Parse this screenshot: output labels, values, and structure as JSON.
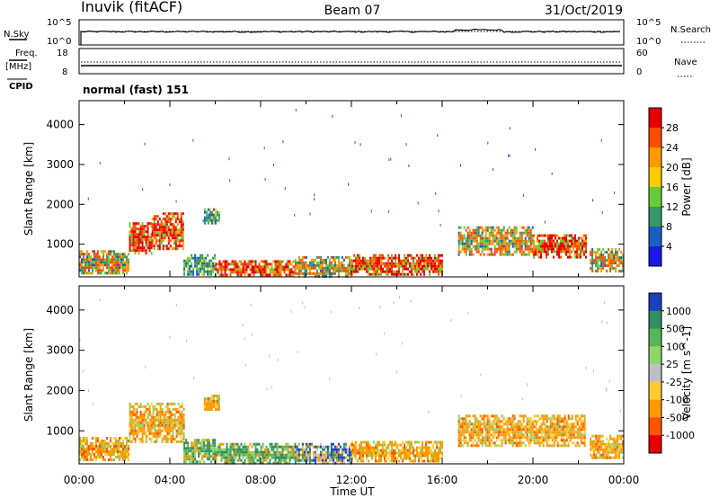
{
  "header": {
    "station": "Inuvik (fitACF)",
    "beam": "Beam 07",
    "date": "31/Oct/2019"
  },
  "meta_panel": {
    "nsky_label": "N.Sky",
    "nsearch_label": "N.Search",
    "freq_label": "Freq.",
    "freq_unit": "[MHz]",
    "nave_label": "Nave",
    "cpid_label": "CPID",
    "cpid_value": "normal (fast) 151",
    "noise_ticks_left": [
      "10^5",
      "10^0"
    ],
    "noise_ticks_right": [
      "10^5",
      "10^0"
    ],
    "freq_ticks": [
      "18",
      "8"
    ],
    "nave_ticks": [
      "60",
      "0"
    ]
  },
  "chart_data": [
    {
      "type": "heatmap",
      "title": "Power",
      "ylabel": "Slant Range [km]",
      "xlabel": "",
      "colorbar_label": "Power [dB]",
      "colorbar_ticks": [
        "28",
        "24",
        "20",
        "16",
        "12",
        "8",
        "4"
      ],
      "colorbar_colors": [
        "#e60000",
        "#ff4d00",
        "#ff9900",
        "#ffcc00",
        "#66cc33",
        "#339966",
        "#1a5fbf",
        "#1a1ae6"
      ],
      "ylim": [
        180,
        4600
      ],
      "yticks": [
        "1000",
        "2000",
        "3000",
        "4000"
      ],
      "xticks": [
        "00:00",
        "04:00",
        "08:00",
        "12:00",
        "16:00",
        "20:00",
        "00:00"
      ],
      "echo_regions": [
        {
          "t0": 0.0,
          "t1": 2.2,
          "r0": 250,
          "r1": 850,
          "level": "medium"
        },
        {
          "t0": 2.2,
          "t1": 3.2,
          "r0": 750,
          "r1": 1550,
          "level": "high"
        },
        {
          "t0": 3.2,
          "t1": 4.6,
          "r0": 900,
          "r1": 1800,
          "level": "high"
        },
        {
          "t0": 4.6,
          "t1": 6.0,
          "r0": 250,
          "r1": 750,
          "level": "low"
        },
        {
          "t0": 5.5,
          "t1": 6.2,
          "r0": 1500,
          "r1": 1900,
          "level": "low"
        },
        {
          "t0": 6.0,
          "t1": 9.5,
          "r0": 200,
          "r1": 600,
          "level": "high"
        },
        {
          "t0": 9.5,
          "t1": 12.0,
          "r0": 200,
          "r1": 700,
          "level": "medium"
        },
        {
          "t0": 12.0,
          "t1": 16.0,
          "r0": 250,
          "r1": 750,
          "level": "high"
        },
        {
          "t0": 16.7,
          "t1": 20.0,
          "r0": 750,
          "r1": 1450,
          "level": "medium"
        },
        {
          "t0": 20.0,
          "t1": 22.3,
          "r0": 700,
          "r1": 1250,
          "level": "high"
        },
        {
          "t0": 22.5,
          "t1": 24.0,
          "r0": 350,
          "r1": 900,
          "level": "medium"
        }
      ]
    },
    {
      "type": "heatmap",
      "title": "Velocity",
      "ylabel": "Slant Range [km]",
      "xlabel": "Time UT",
      "colorbar_label": "Velocity [m s^-1]",
      "colorbar_ticks": [
        "1000",
        "500",
        "100",
        "25",
        "-25",
        "-100",
        "-500",
        "-1000"
      ],
      "colorbar_colors": [
        "#1a3fbf",
        "#2f8f5f",
        "#5ab45a",
        "#8fd66b",
        "#c0c0c0",
        "#ffcc33",
        "#ff9900",
        "#ff5500",
        "#e60000"
      ],
      "ylim": [
        180,
        4600
      ],
      "yticks": [
        "1000",
        "2000",
        "3000",
        "4000"
      ],
      "xticks": [
        "00:00",
        "04:00",
        "08:00",
        "12:00",
        "16:00",
        "20:00",
        "00:00"
      ],
      "echo_regions": [
        {
          "t0": 0.0,
          "t1": 2.2,
          "r0": 250,
          "r1": 850,
          "level": "neg"
        },
        {
          "t0": 2.2,
          "t1": 4.6,
          "r0": 750,
          "r1": 1700,
          "level": "neg"
        },
        {
          "t0": 4.6,
          "t1": 6.0,
          "r0": 250,
          "r1": 800,
          "level": "pos"
        },
        {
          "t0": 5.5,
          "t1": 6.2,
          "r0": 1500,
          "r1": 1900,
          "level": "neg"
        },
        {
          "t0": 6.0,
          "t1": 9.5,
          "r0": 200,
          "r1": 700,
          "level": "pos"
        },
        {
          "t0": 9.5,
          "t1": 12.0,
          "r0": 200,
          "r1": 700,
          "level": "mixed"
        },
        {
          "t0": 12.0,
          "t1": 16.0,
          "r0": 250,
          "r1": 750,
          "level": "neg"
        },
        {
          "t0": 16.7,
          "t1": 22.3,
          "r0": 650,
          "r1": 1400,
          "level": "neg"
        },
        {
          "t0": 22.5,
          "t1": 24.0,
          "r0": 300,
          "r1": 900,
          "level": "neg"
        }
      ]
    }
  ]
}
